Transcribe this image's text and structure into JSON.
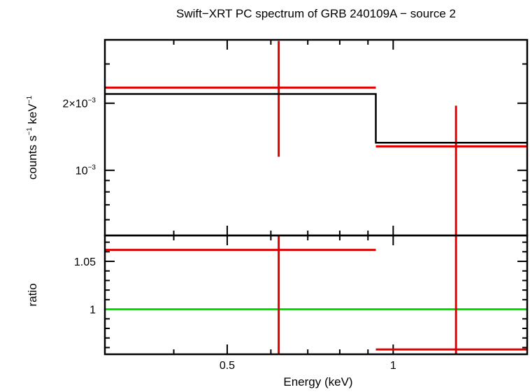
{
  "chart_data": {
    "type": "scatter",
    "title": "Swift−XRT PC spectrum of GRB 240109A − source 2",
    "xlabel": "Energy (keV)",
    "x_scale": "log",
    "xlim": [
      0.3,
      1.75
    ],
    "x_ticks": [
      {
        "value": 0.5,
        "label": "0.5"
      },
      {
        "value": 1,
        "label": "1"
      }
    ],
    "panels": [
      {
        "id": "spectrum",
        "ylabel_parts": {
          "base1": "counts s",
          "exp1": "−1",
          "base2": " keV",
          "exp2": "−1"
        },
        "y_scale": "log",
        "ylim": [
          0.00051,
          0.00385
        ],
        "y_ticks": [
          {
            "value": 0.002,
            "base": "2×10",
            "exp": "−3"
          },
          {
            "value": 0.001,
            "base": "10",
            "exp": "−3"
          }
        ],
        "series": [
          {
            "kind": "data",
            "color": "#e00000",
            "points": [
              {
                "x_lo": 0.3,
                "x_hi": 0.93,
                "x": 0.62,
                "y": 0.00235,
                "y_lo": 0.00115,
                "y_hi": 0.0038
              },
              {
                "x_lo": 0.93,
                "x_hi": 1.75,
                "x": 1.3,
                "y": 0.00128,
                "y_lo": 0.000505,
                "y_hi": 0.00195
              }
            ]
          },
          {
            "kind": "model",
            "color": "#000000",
            "steps": [
              {
                "x_lo": 0.3,
                "x_hi": 0.93,
                "y": 0.0022
              },
              {
                "x_lo": 0.93,
                "x_hi": 1.75,
                "y": 0.00133
              }
            ]
          }
        ]
      },
      {
        "id": "ratio",
        "ylabel": "ratio",
        "y_scale": "linear",
        "ylim": [
          0.953,
          1.077
        ],
        "y_ticks": [
          {
            "value": 1.05,
            "label": "1.05"
          },
          {
            "value": 1,
            "label": "1"
          }
        ],
        "reference_line": {
          "y": 1,
          "color": "#00e000"
        },
        "series": [
          {
            "kind": "data",
            "color": "#e00000",
            "points": [
              {
                "x_lo": 0.3,
                "x_hi": 0.93,
                "x": 0.62,
                "y": 1.062,
                "y_lo": 0.953,
                "y_hi": 1.077
              },
              {
                "x_lo": 0.93,
                "x_hi": 1.75,
                "x": 1.3,
                "y": 0.958,
                "y_lo": 0.953,
                "y_hi": 1.077
              }
            ]
          }
        ]
      }
    ]
  }
}
